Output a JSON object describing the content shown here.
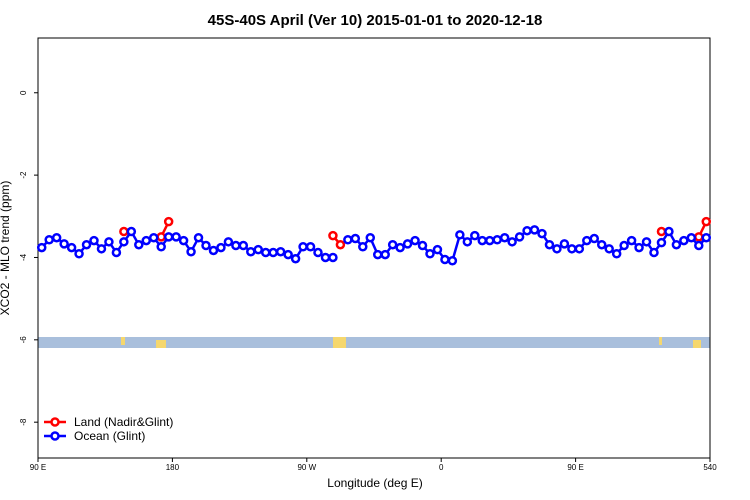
{
  "chart_data": {
    "type": "line",
    "title": "45S-40S April (Ver 10)   2015-01-01 to 2020-12-18",
    "x_label": "Longitude (deg E)",
    "y_label": "XCO2 - MLO trend (ppm)",
    "xlim": [
      90,
      540
    ],
    "ylim": [
      -8.87,
      1.33
    ],
    "xticks": [
      {
        "value": 90,
        "label": "90 E"
      },
      180,
      {
        "value": 270,
        "label": "90 W"
      },
      {
        "value": 360,
        "label": "0"
      },
      {
        "value": 450,
        "label": "90 E"
      },
      540
    ],
    "yticks": [
      0,
      -2,
      -4,
      -6,
      -8
    ],
    "legend": "bottom-left",
    "series": [
      {
        "name": "Land (Nadir&Glint)",
        "color": "#ff0000",
        "x": [
          147.5,
          null,
          172.5,
          177.5,
          null,
          287.5,
          292.5,
          null,
          507.5,
          null,
          532.5,
          537.5
        ],
        "values": [
          -3.37,
          null,
          -3.5,
          -3.13,
          null,
          -3.47,
          -3.69,
          null,
          -3.37,
          null,
          -3.5,
          -3.13
        ]
      },
      {
        "name": "Ocean (Glint)",
        "color": "#0000ff",
        "x": [
          92.5,
          97.5,
          102.5,
          107.5,
          112.5,
          117.5,
          122.5,
          127.5,
          132.5,
          137.5,
          142.5,
          147.5,
          152.5,
          157.5,
          162.5,
          167.5,
          172.5,
          177.5,
          182.5,
          187.5,
          192.5,
          197.5,
          202.5,
          207.5,
          212.5,
          217.5,
          222.5,
          227.5,
          232.5,
          237.5,
          242.5,
          247.5,
          252.5,
          257.5,
          262.5,
          267.5,
          272.5,
          277.5,
          282.5,
          287.5,
          292.5,
          297.5,
          302.5,
          307.5,
          312.5,
          317.5,
          322.5,
          327.5,
          332.5,
          337.5,
          342.5,
          347.5,
          352.5,
          357.5,
          362.5,
          367.5,
          372.5,
          377.5,
          382.5,
          387.5,
          392.5,
          397.5,
          402.5,
          407.5,
          412.5,
          417.5,
          422.5,
          427.5,
          432.5,
          437.5,
          442.5,
          447.5,
          452.5,
          457.5,
          462.5,
          467.5,
          472.5,
          477.5,
          482.5,
          487.5,
          492.5,
          497.5,
          502.5,
          507.5,
          512.5,
          517.5,
          522.5,
          527.5,
          532.5,
          537.5
        ],
        "values": [
          -3.76,
          -3.57,
          -3.52,
          -3.67,
          -3.76,
          -3.91,
          -3.69,
          -3.59,
          -3.79,
          -3.62,
          -3.88,
          -3.62,
          -3.37,
          -3.69,
          -3.59,
          -3.52,
          -3.74,
          -3.5,
          -3.5,
          -3.59,
          -3.86,
          -3.52,
          -3.71,
          -3.83,
          -3.76,
          -3.62,
          -3.71,
          -3.71,
          -3.86,
          -3.81,
          -3.88,
          -3.88,
          -3.86,
          -3.93,
          -4.03,
          -3.74,
          -3.74,
          -3.88,
          -4.0,
          -4.0,
          null,
          -3.57,
          -3.54,
          -3.74,
          -3.52,
          -3.93,
          -3.93,
          -3.69,
          -3.76,
          -3.67,
          -3.59,
          -3.71,
          -3.91,
          -3.81,
          -4.05,
          -4.08,
          -3.45,
          -3.62,
          -3.47,
          -3.59,
          -3.59,
          -3.57,
          -3.52,
          -3.62,
          -3.5,
          -3.35,
          -3.33,
          -3.42,
          -3.69,
          -3.79,
          -3.67,
          -3.79,
          -3.79,
          -3.59,
          -3.54,
          -3.69,
          -3.79,
          -3.91,
          -3.71,
          -3.59,
          -3.76,
          -3.62,
          -3.88,
          -3.64,
          -3.37,
          -3.69,
          -3.59,
          -3.52,
          -3.71,
          -3.52
        ]
      }
    ]
  }
}
